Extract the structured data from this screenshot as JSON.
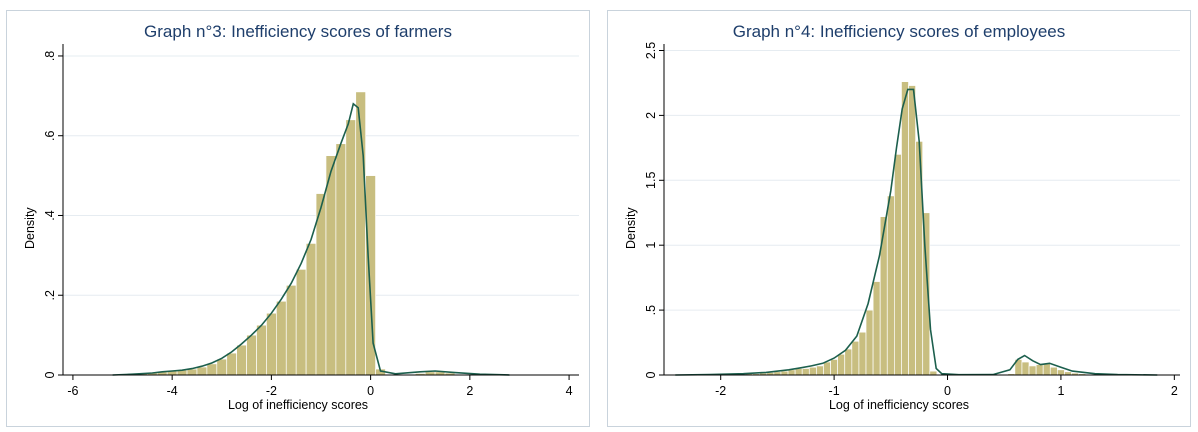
{
  "chart_data": [
    {
      "type": "bar",
      "title": "Graph n°3: Inefficiency scores of farmers",
      "xlabel": "Log of inefficiency scores",
      "ylabel": "Density",
      "xlim": [
        -6.2,
        4.2
      ],
      "ylim": [
        0,
        0.83
      ],
      "xticks": [
        -6,
        -4,
        -2,
        0,
        2,
        4
      ],
      "yticks": [
        0,
        0.2,
        0.4,
        0.6,
        0.8
      ],
      "ytick_labels": [
        "0",
        ".2",
        ".4",
        ".6",
        ".8"
      ],
      "grid": true,
      "bin_width": 0.2,
      "bars": [
        {
          "x": -4.6,
          "y": 0.004
        },
        {
          "x": -4.4,
          "y": 0.006
        },
        {
          "x": -4.2,
          "y": 0.008
        },
        {
          "x": -4.0,
          "y": 0.01
        },
        {
          "x": -3.8,
          "y": 0.012
        },
        {
          "x": -3.6,
          "y": 0.015
        },
        {
          "x": -3.4,
          "y": 0.02
        },
        {
          "x": -3.2,
          "y": 0.028
        },
        {
          "x": -3.0,
          "y": 0.04
        },
        {
          "x": -2.8,
          "y": 0.055
        },
        {
          "x": -2.6,
          "y": 0.075
        },
        {
          "x": -2.4,
          "y": 0.1
        },
        {
          "x": -2.2,
          "y": 0.125
        },
        {
          "x": -2.0,
          "y": 0.155
        },
        {
          "x": -1.8,
          "y": 0.185
        },
        {
          "x": -1.6,
          "y": 0.225
        },
        {
          "x": -1.4,
          "y": 0.265
        },
        {
          "x": -1.2,
          "y": 0.33
        },
        {
          "x": -1.0,
          "y": 0.455
        },
        {
          "x": -0.8,
          "y": 0.55
        },
        {
          "x": -0.6,
          "y": 0.58
        },
        {
          "x": -0.4,
          "y": 0.64
        },
        {
          "x": -0.2,
          "y": 0.71
        },
        {
          "x": 0.0,
          "y": 0.5
        },
        {
          "x": 0.2,
          "y": 0.015
        },
        {
          "x": 1.0,
          "y": 0.004
        },
        {
          "x": 1.2,
          "y": 0.008
        },
        {
          "x": 1.4,
          "y": 0.008
        },
        {
          "x": 1.6,
          "y": 0.005
        }
      ],
      "bar_color": "#c8be80",
      "density_curve": {
        "color": "#1c5f4d",
        "x": [
          -5.2,
          -4.8,
          -4.4,
          -4.2,
          -4.0,
          -3.8,
          -3.6,
          -3.4,
          -3.2,
          -3.0,
          -2.8,
          -2.6,
          -2.4,
          -2.2,
          -2.0,
          -1.8,
          -1.6,
          -1.4,
          -1.2,
          -1.0,
          -0.8,
          -0.6,
          -0.45,
          -0.35,
          -0.25,
          -0.15,
          -0.05,
          0.05,
          0.2,
          0.5,
          1.0,
          1.3,
          1.7,
          2.2,
          2.8
        ],
        "y": [
          0,
          0.002,
          0.005,
          0.008,
          0.01,
          0.012,
          0.016,
          0.022,
          0.03,
          0.042,
          0.058,
          0.078,
          0.1,
          0.125,
          0.155,
          0.19,
          0.23,
          0.28,
          0.34,
          0.42,
          0.51,
          0.58,
          0.63,
          0.68,
          0.67,
          0.55,
          0.3,
          0.08,
          0.01,
          0.003,
          0.008,
          0.01,
          0.006,
          0.002,
          0
        ]
      }
    },
    {
      "type": "bar",
      "title": "Graph n°4: Inefficiency scores of employees",
      "xlabel": "Log of inefficiency scores",
      "ylabel": "Density",
      "xlim": [
        -2.5,
        2.05
      ],
      "ylim": [
        0,
        2.55
      ],
      "xticks": [
        -2,
        -1,
        0,
        1,
        2
      ],
      "yticks": [
        0,
        0.5,
        1,
        1.5,
        2,
        2.5
      ],
      "ytick_labels": [
        "0",
        ".5",
        "1",
        "1.5",
        "2",
        "2.5"
      ],
      "grid": true,
      "bin_width": 0.0625,
      "bars": [
        {
          "x": -1.75,
          "y": 0.01
        },
        {
          "x": -1.6875,
          "y": 0.01
        },
        {
          "x": -1.625,
          "y": 0.015
        },
        {
          "x": -1.5625,
          "y": 0.02
        },
        {
          "x": -1.5,
          "y": 0.025
        },
        {
          "x": -1.4375,
          "y": 0.03
        },
        {
          "x": -1.375,
          "y": 0.04
        },
        {
          "x": -1.3125,
          "y": 0.05
        },
        {
          "x": -1.25,
          "y": 0.05
        },
        {
          "x": -1.1875,
          "y": 0.06
        },
        {
          "x": -1.125,
          "y": 0.07
        },
        {
          "x": -1.0625,
          "y": 0.1
        },
        {
          "x": -1.0,
          "y": 0.12
        },
        {
          "x": -0.9375,
          "y": 0.16
        },
        {
          "x": -0.875,
          "y": 0.2
        },
        {
          "x": -0.8125,
          "y": 0.26
        },
        {
          "x": -0.75,
          "y": 0.33
        },
        {
          "x": -0.6875,
          "y": 0.5
        },
        {
          "x": -0.625,
          "y": 0.72
        },
        {
          "x": -0.5625,
          "y": 1.22
        },
        {
          "x": -0.5,
          "y": 1.38
        },
        {
          "x": -0.4375,
          "y": 1.7
        },
        {
          "x": -0.375,
          "y": 2.26
        },
        {
          "x": -0.3125,
          "y": 2.23
        },
        {
          "x": -0.25,
          "y": 1.8
        },
        {
          "x": -0.1875,
          "y": 1.25
        },
        {
          "x": -0.125,
          "y": 0.03
        },
        {
          "x": 0.5625,
          "y": 0.01
        },
        {
          "x": 0.625,
          "y": 0.12
        },
        {
          "x": 0.6875,
          "y": 0.1
        },
        {
          "x": 0.75,
          "y": 0.07
        },
        {
          "x": 0.8125,
          "y": 0.08
        },
        {
          "x": 0.875,
          "y": 0.09
        },
        {
          "x": 0.9375,
          "y": 0.06
        },
        {
          "x": 1.0,
          "y": 0.04
        },
        {
          "x": 1.0625,
          "y": 0.025
        },
        {
          "x": 1.125,
          "y": 0.015
        },
        {
          "x": 1.1875,
          "y": 0.01
        }
      ],
      "bar_color": "#c8be80",
      "density_curve": {
        "color": "#1c5f4d",
        "x": [
          -2.4,
          -2.1,
          -1.8,
          -1.6,
          -1.4,
          -1.3,
          -1.2,
          -1.1,
          -1.0,
          -0.9,
          -0.8,
          -0.7,
          -0.6,
          -0.5,
          -0.45,
          -0.4,
          -0.35,
          -0.3,
          -0.25,
          -0.2,
          -0.15,
          -0.1,
          -0.05,
          0.1,
          0.4,
          0.55,
          0.62,
          0.68,
          0.75,
          0.82,
          0.9,
          1.0,
          1.1,
          1.3,
          1.5,
          1.85
        ],
        "y": [
          0,
          0.003,
          0.01,
          0.02,
          0.04,
          0.055,
          0.07,
          0.09,
          0.13,
          0.19,
          0.3,
          0.55,
          0.92,
          1.42,
          1.75,
          2.05,
          2.2,
          2.2,
          1.8,
          1.0,
          0.35,
          0.05,
          0.01,
          0.002,
          0.003,
          0.04,
          0.12,
          0.15,
          0.11,
          0.08,
          0.09,
          0.06,
          0.03,
          0.01,
          0.003,
          0
        ]
      }
    }
  ]
}
